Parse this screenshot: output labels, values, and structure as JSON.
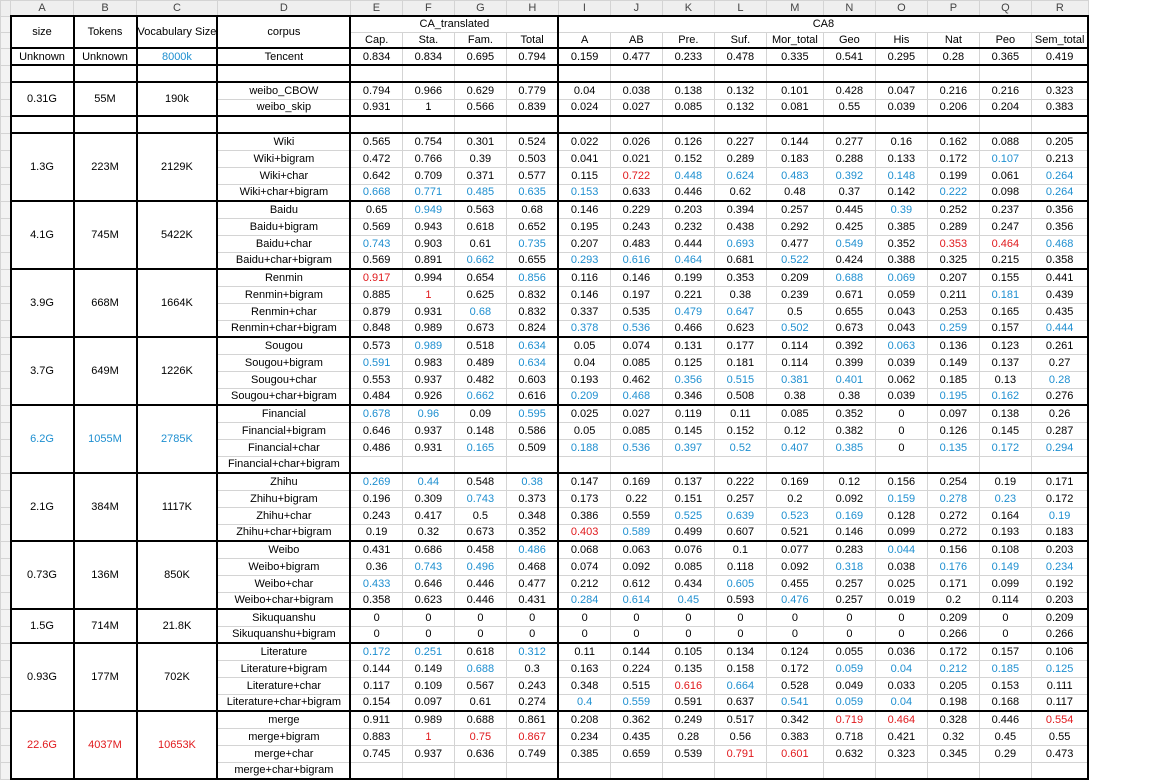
{
  "column_letters": [
    "A",
    "B",
    "C",
    "D",
    "E",
    "F",
    "G",
    "H",
    "I",
    "J",
    "K",
    "L",
    "M",
    "N",
    "O",
    "P",
    "Q",
    "R"
  ],
  "row_numbers": [
    "",
    "",
    "",
    "",
    "",
    "",
    "",
    "",
    "",
    "",
    "",
    "",
    "",
    "",
    "",
    "",
    "",
    "",
    "",
    "",
    "",
    "",
    "",
    "",
    "",
    "",
    "",
    "",
    "",
    "",
    "",
    "",
    "",
    "",
    "",
    "",
    "",
    "",
    "",
    "",
    "",
    "",
    "",
    "",
    ""
  ],
  "header": {
    "size": "size",
    "tokens": "Tokens",
    "vocab": "Vocabulary Size",
    "corpus": "corpus",
    "ca_translated": "CA_translated",
    "ca8": "CA8",
    "sub": [
      "Cap.",
      "Sta.",
      "Fam.",
      "Total",
      "A",
      "AB",
      "Pre.",
      "Suf.",
      "Mor_total",
      "Geo",
      "His",
      "Nat",
      "Peo",
      "Sem_total"
    ]
  },
  "colors": {
    "blue": "#1e8fd0",
    "red": "#e0191c",
    "grid": "#d4d4d4",
    "header_bg": "#efefef"
  },
  "rows": [
    {
      "size": "Unknown",
      "tokens": "Unknown",
      "vocab": "8000k",
      "vocab_color": "blue",
      "corpus": "Tencent",
      "v": [
        "0.834",
        "0.834",
        "0.695",
        "0.794",
        "0.159",
        "0.477",
        "0.233",
        "0.478",
        "0.335",
        "0.541",
        "0.295",
        "0.28",
        "0.365",
        "0.419"
      ],
      "c": {}
    },
    {
      "size": "",
      "tokens": "",
      "vocab": "",
      "corpus": "",
      "v": [
        "",
        "",
        "",
        "",
        "",
        "",
        "",
        "",
        "",
        "",
        "",
        "",
        "",
        ""
      ],
      "c": {}
    },
    {
      "size": "0.31G",
      "tokens": "55M",
      "vocab": "190k",
      "corpus": "weibo_CBOW",
      "v": [
        "0.794",
        "0.966",
        "0.629",
        "0.779",
        "0.04",
        "0.038",
        "0.138",
        "0.132",
        "0.101",
        "0.428",
        "0.047",
        "0.216",
        "0.216",
        "0.323"
      ],
      "c": {}
    },
    {
      "size": "",
      "tokens": "",
      "vocab": "",
      "corpus": "weibo_skip",
      "v": [
        "0.931",
        "1",
        "0.566",
        "0.839",
        "0.024",
        "0.027",
        "0.085",
        "0.132",
        "0.081",
        "0.55",
        "0.039",
        "0.206",
        "0.204",
        "0.383"
      ],
      "c": {}
    },
    {
      "size": "",
      "tokens": "",
      "vocab": "",
      "corpus": "",
      "v": [
        "",
        "",
        "",
        "",
        "",
        "",
        "",
        "",
        "",
        "",
        "",
        "",
        "",
        ""
      ],
      "c": {}
    },
    {
      "size": "1.3G",
      "tokens": "223M",
      "vocab": "2129K",
      "corpus": "Wiki",
      "v": [
        "0.565",
        "0.754",
        "0.301",
        "0.524",
        "0.022",
        "0.026",
        "0.126",
        "0.227",
        "0.144",
        "0.277",
        "0.16",
        "0.162",
        "0.088",
        "0.205"
      ],
      "c": {}
    },
    {
      "size": "",
      "tokens": "",
      "vocab": "",
      "corpus": "Wiki+bigram",
      "v": [
        "0.472",
        "0.766",
        "0.39",
        "0.503",
        "0.041",
        "0.021",
        "0.152",
        "0.289",
        "0.183",
        "0.288",
        "0.133",
        "0.172",
        "0.107",
        "0.213"
      ],
      "c": {
        "12": "blue"
      }
    },
    {
      "size": "",
      "tokens": "",
      "vocab": "",
      "corpus": "Wiki+char",
      "v": [
        "0.642",
        "0.709",
        "0.371",
        "0.577",
        "0.115",
        "0.722",
        "0.448",
        "0.624",
        "0.483",
        "0.392",
        "0.148",
        "0.199",
        "0.061",
        "0.264"
      ],
      "c": {
        "5": "red",
        "6": "blue",
        "7": "blue",
        "8": "blue",
        "9": "blue",
        "10": "blue",
        "13": "blue"
      }
    },
    {
      "size": "",
      "tokens": "",
      "vocab": "",
      "corpus": "Wiki+char+bigram",
      "v": [
        "0.668",
        "0.771",
        "0.485",
        "0.635",
        "0.153",
        "0.633",
        "0.446",
        "0.62",
        "0.48",
        "0.37",
        "0.142",
        "0.222",
        "0.098",
        "0.264"
      ],
      "c": {
        "0": "blue",
        "1": "blue",
        "2": "blue",
        "3": "blue",
        "4": "blue",
        "11": "blue",
        "13": "blue"
      }
    },
    {
      "size": "4.1G",
      "tokens": "745M",
      "vocab": "5422K",
      "corpus": "Baidu",
      "v": [
        "0.65",
        "0.949",
        "0.563",
        "0.68",
        "0.146",
        "0.229",
        "0.203",
        "0.394",
        "0.257",
        "0.445",
        "0.39",
        "0.252",
        "0.237",
        "0.356"
      ],
      "c": {
        "1": "blue",
        "10": "blue"
      }
    },
    {
      "size": "",
      "tokens": "",
      "vocab": "",
      "corpus": "Baidu+bigram",
      "v": [
        "0.569",
        "0.943",
        "0.618",
        "0.652",
        "0.195",
        "0.243",
        "0.232",
        "0.438",
        "0.292",
        "0.425",
        "0.385",
        "0.289",
        "0.247",
        "0.356"
      ],
      "c": {}
    },
    {
      "size": "",
      "tokens": "",
      "vocab": "",
      "corpus": "Baidu+char",
      "v": [
        "0.743",
        "0.903",
        "0.61",
        "0.735",
        "0.207",
        "0.483",
        "0.444",
        "0.693",
        "0.477",
        "0.549",
        "0.352",
        "0.353",
        "0.464",
        "0.468"
      ],
      "c": {
        "0": "blue",
        "3": "blue",
        "7": "blue",
        "9": "blue",
        "11": "red",
        "12": "red",
        "13": "blue"
      }
    },
    {
      "size": "",
      "tokens": "",
      "vocab": "",
      "corpus": "Baidu+char+bigram",
      "v": [
        "0.569",
        "0.891",
        "0.662",
        "0.655",
        "0.293",
        "0.616",
        "0.464",
        "0.681",
        "0.522",
        "0.424",
        "0.388",
        "0.325",
        "0.215",
        "0.358"
      ],
      "c": {
        "2": "blue",
        "4": "blue",
        "5": "blue",
        "6": "blue",
        "8": "blue"
      }
    },
    {
      "size": "3.9G",
      "tokens": "668M",
      "vocab": "1664K",
      "corpus": "Renmin",
      "v": [
        "0.917",
        "0.994",
        "0.654",
        "0.856",
        "0.116",
        "0.146",
        "0.199",
        "0.353",
        "0.209",
        "0.688",
        "0.069",
        "0.207",
        "0.155",
        "0.441"
      ],
      "c": {
        "0": "red",
        "3": "blue",
        "9": "blue",
        "10": "blue"
      }
    },
    {
      "size": "",
      "tokens": "",
      "vocab": "",
      "corpus": "Renmin+bigram",
      "v": [
        "0.885",
        "1",
        "0.625",
        "0.832",
        "0.146",
        "0.197",
        "0.221",
        "0.38",
        "0.239",
        "0.671",
        "0.059",
        "0.211",
        "0.181",
        "0.439"
      ],
      "c": {
        "1": "red",
        "12": "blue"
      }
    },
    {
      "size": "",
      "tokens": "",
      "vocab": "",
      "corpus": "Renmin+char",
      "v": [
        "0.879",
        "0.931",
        "0.68",
        "0.832",
        "0.337",
        "0.535",
        "0.479",
        "0.647",
        "0.5",
        "0.655",
        "0.043",
        "0.253",
        "0.165",
        "0.435"
      ],
      "c": {
        "2": "blue",
        "6": "blue",
        "7": "blue"
      }
    },
    {
      "size": "",
      "tokens": "",
      "vocab": "",
      "corpus": "Renmin+char+bigram",
      "v": [
        "0.848",
        "0.989",
        "0.673",
        "0.824",
        "0.378",
        "0.536",
        "0.466",
        "0.623",
        "0.502",
        "0.673",
        "0.043",
        "0.259",
        "0.157",
        "0.444"
      ],
      "c": {
        "4": "blue",
        "5": "blue",
        "8": "blue",
        "11": "blue",
        "13": "blue"
      }
    },
    {
      "size": "3.7G",
      "tokens": "649M",
      "vocab": "1226K",
      "corpus": "Sougou",
      "v": [
        "0.573",
        "0.989",
        "0.518",
        "0.634",
        "0.05",
        "0.074",
        "0.131",
        "0.177",
        "0.114",
        "0.392",
        "0.063",
        "0.136",
        "0.123",
        "0.261"
      ],
      "c": {
        "1": "blue",
        "3": "blue",
        "10": "blue"
      }
    },
    {
      "size": "",
      "tokens": "",
      "vocab": "",
      "corpus": "Sougou+bigram",
      "v": [
        "0.591",
        "0.983",
        "0.489",
        "0.634",
        "0.04",
        "0.085",
        "0.125",
        "0.181",
        "0.114",
        "0.399",
        "0.039",
        "0.149",
        "0.137",
        "0.27"
      ],
      "c": {
        "0": "blue",
        "3": "blue"
      }
    },
    {
      "size": "",
      "tokens": "",
      "vocab": "",
      "corpus": "Sougou+char",
      "v": [
        "0.553",
        "0.937",
        "0.482",
        "0.603",
        "0.193",
        "0.462",
        "0.356",
        "0.515",
        "0.381",
        "0.401",
        "0.062",
        "0.185",
        "0.13",
        "0.28"
      ],
      "c": {
        "6": "blue",
        "7": "blue",
        "8": "blue",
        "9": "blue",
        "13": "blue"
      }
    },
    {
      "size": "",
      "tokens": "",
      "vocab": "",
      "corpus": "Sougou+char+bigram",
      "v": [
        "0.484",
        "0.926",
        "0.662",
        "0.616",
        "0.209",
        "0.468",
        "0.346",
        "0.508",
        "0.38",
        "0.38",
        "0.039",
        "0.195",
        "0.162",
        "0.276"
      ],
      "c": {
        "2": "blue",
        "4": "blue",
        "5": "blue",
        "11": "blue",
        "12": "blue"
      }
    },
    {
      "size": "6.2G",
      "size_color": "blue",
      "tokens": "1055M",
      "tokens_color": "blue",
      "vocab": "2785K",
      "vocab_color": "blue",
      "corpus": "Financial",
      "v": [
        "0.678",
        "0.96",
        "0.09",
        "0.595",
        "0.025",
        "0.027",
        "0.119",
        "0.11",
        "0.085",
        "0.352",
        "0",
        "0.097",
        "0.138",
        "0.26"
      ],
      "c": {
        "0": "blue",
        "1": "blue",
        "3": "blue"
      }
    },
    {
      "size": "",
      "tokens": "",
      "vocab": "",
      "corpus": "Financial+bigram",
      "v": [
        "0.646",
        "0.937",
        "0.148",
        "0.586",
        "0.05",
        "0.085",
        "0.145",
        "0.152",
        "0.12",
        "0.382",
        "0",
        "0.126",
        "0.145",
        "0.287"
      ],
      "c": {}
    },
    {
      "size": "",
      "tokens": "",
      "vocab": "",
      "corpus": "Financial+char",
      "v": [
        "0.486",
        "0.931",
        "0.165",
        "0.509",
        "0.188",
        "0.536",
        "0.397",
        "0.52",
        "0.407",
        "0.385",
        "0",
        "0.135",
        "0.172",
        "0.294"
      ],
      "c": {
        "2": "blue",
        "4": "blue",
        "5": "blue",
        "6": "blue",
        "7": "blue",
        "8": "blue",
        "9": "blue",
        "11": "blue",
        "12": "blue",
        "13": "blue"
      }
    },
    {
      "size": "",
      "tokens": "",
      "vocab": "",
      "corpus": "Financial+char+bigram",
      "v": [
        "",
        "",
        "",
        "",
        "",
        "",
        "",
        "",
        "",
        "",
        "",
        "",
        "",
        ""
      ],
      "c": {}
    },
    {
      "size": "2.1G",
      "tokens": "384M",
      "vocab": "1117K",
      "corpus": "Zhihu",
      "v": [
        "0.269",
        "0.44",
        "0.548",
        "0.38",
        "0.147",
        "0.169",
        "0.137",
        "0.222",
        "0.169",
        "0.12",
        "0.156",
        "0.254",
        "0.19",
        "0.171"
      ],
      "c": {
        "0": "blue",
        "1": "blue",
        "3": "blue"
      }
    },
    {
      "size": "",
      "tokens": "",
      "vocab": "",
      "corpus": "Zhihu+bigram",
      "v": [
        "0.196",
        "0.309",
        "0.743",
        "0.373",
        "0.173",
        "0.22",
        "0.151",
        "0.257",
        "0.2",
        "0.092",
        "0.159",
        "0.278",
        "0.23",
        "0.172"
      ],
      "c": {
        "2": "blue",
        "10": "blue",
        "11": "blue",
        "12": "blue"
      }
    },
    {
      "size": "",
      "tokens": "",
      "vocab": "",
      "corpus": "Zhihu+char",
      "v": [
        "0.243",
        "0.417",
        "0.5",
        "0.348",
        "0.386",
        "0.559",
        "0.525",
        "0.639",
        "0.523",
        "0.169",
        "0.128",
        "0.272",
        "0.164",
        "0.19"
      ],
      "c": {
        "6": "blue",
        "7": "blue",
        "8": "blue",
        "9": "blue",
        "13": "blue"
      }
    },
    {
      "size": "",
      "tokens": "",
      "vocab": "",
      "corpus": "Zhihu+char+bigram",
      "v": [
        "0.19",
        "0.32",
        "0.673",
        "0.352",
        "0.403",
        "0.589",
        "0.499",
        "0.607",
        "0.521",
        "0.146",
        "0.099",
        "0.272",
        "0.193",
        "0.183"
      ],
      "c": {
        "4": "red",
        "5": "blue"
      }
    },
    {
      "size": "0.73G",
      "tokens": "136M",
      "vocab": "850K",
      "corpus": "Weibo",
      "v": [
        "0.431",
        "0.686",
        "0.458",
        "0.486",
        "0.068",
        "0.063",
        "0.076",
        "0.1",
        "0.077",
        "0.283",
        "0.044",
        "0.156",
        "0.108",
        "0.203"
      ],
      "c": {
        "3": "blue",
        "10": "blue"
      }
    },
    {
      "size": "",
      "tokens": "",
      "vocab": "",
      "corpus": "Weibo+bigram",
      "v": [
        "0.36",
        "0.743",
        "0.496",
        "0.468",
        "0.074",
        "0.092",
        "0.085",
        "0.118",
        "0.092",
        "0.318",
        "0.038",
        "0.176",
        "0.149",
        "0.234"
      ],
      "c": {
        "1": "blue",
        "2": "blue",
        "9": "blue",
        "11": "blue",
        "12": "blue",
        "13": "blue"
      }
    },
    {
      "size": "",
      "tokens": "",
      "vocab": "",
      "corpus": "Weibo+char",
      "v": [
        "0.433",
        "0.646",
        "0.446",
        "0.477",
        "0.212",
        "0.612",
        "0.434",
        "0.605",
        "0.455",
        "0.257",
        "0.025",
        "0.171",
        "0.099",
        "0.192"
      ],
      "c": {
        "0": "blue",
        "7": "blue"
      }
    },
    {
      "size": "",
      "tokens": "",
      "vocab": "",
      "corpus": "Weibo+char+bigram",
      "v": [
        "0.358",
        "0.623",
        "0.446",
        "0.431",
        "0.284",
        "0.614",
        "0.45",
        "0.593",
        "0.476",
        "0.257",
        "0.019",
        "0.2",
        "0.114",
        "0.203"
      ],
      "c": {
        "4": "blue",
        "5": "blue",
        "6": "blue",
        "8": "blue"
      }
    },
    {
      "size": "1.5G",
      "tokens": "714M",
      "vocab": "21.8K",
      "corpus": "Sikuquanshu",
      "v": [
        "0",
        "0",
        "0",
        "0",
        "0",
        "0",
        "0",
        "0",
        "0",
        "0",
        "0",
        "0.209",
        "0",
        "0.209"
      ],
      "c": {}
    },
    {
      "size": "",
      "tokens": "",
      "vocab": "",
      "corpus": "Sikuquanshu+bigram",
      "v": [
        "0",
        "0",
        "0",
        "0",
        "0",
        "0",
        "0",
        "0",
        "0",
        "0",
        "0",
        "0.266",
        "0",
        "0.266"
      ],
      "c": {}
    },
    {
      "size": "0.93G",
      "tokens": "177M",
      "vocab": "702K",
      "corpus": "Literature",
      "v": [
        "0.172",
        "0.251",
        "0.618",
        "0.312",
        "0.11",
        "0.144",
        "0.105",
        "0.134",
        "0.124",
        "0.055",
        "0.036",
        "0.172",
        "0.157",
        "0.106"
      ],
      "c": {
        "0": "blue",
        "1": "blue",
        "3": "blue"
      }
    },
    {
      "size": "",
      "tokens": "",
      "vocab": "",
      "corpus": "Literature+bigram",
      "v": [
        "0.144",
        "0.149",
        "0.688",
        "0.3",
        "0.163",
        "0.224",
        "0.135",
        "0.158",
        "0.172",
        "0.059",
        "0.04",
        "0.212",
        "0.185",
        "0.125"
      ],
      "c": {
        "2": "blue",
        "9": "blue",
        "10": "blue",
        "11": "blue",
        "12": "blue",
        "13": "blue"
      }
    },
    {
      "size": "",
      "tokens": "",
      "vocab": "",
      "corpus": "Literature+char",
      "v": [
        "0.117",
        "0.109",
        "0.567",
        "0.243",
        "0.348",
        "0.515",
        "0.616",
        "0.664",
        "0.528",
        "0.049",
        "0.033",
        "0.205",
        "0.153",
        "0.111"
      ],
      "c": {
        "6": "red",
        "7": "blue"
      }
    },
    {
      "size": "",
      "tokens": "",
      "vocab": "",
      "corpus": "Literature+char+bigram",
      "v": [
        "0.154",
        "0.097",
        "0.61",
        "0.274",
        "0.4",
        "0.559",
        "0.591",
        "0.637",
        "0.541",
        "0.059",
        "0.04",
        "0.198",
        "0.168",
        "0.117"
      ],
      "c": {
        "4": "blue",
        "5": "blue",
        "8": "blue",
        "9": "blue",
        "10": "blue"
      }
    },
    {
      "size": "22.6G",
      "size_color": "red",
      "tokens": "4037M",
      "tokens_color": "red",
      "vocab": "10653K",
      "vocab_color": "red",
      "corpus": "merge",
      "v": [
        "0.911",
        "0.989",
        "0.688",
        "0.861",
        "0.208",
        "0.362",
        "0.249",
        "0.517",
        "0.342",
        "0.719",
        "0.464",
        "0.328",
        "0.446",
        "0.554"
      ],
      "c": {
        "9": "red",
        "10": "red",
        "13": "red"
      }
    },
    {
      "size": "",
      "tokens": "",
      "vocab": "",
      "corpus": "merge+bigram",
      "v": [
        "0.883",
        "1",
        "0.75",
        "0.867",
        "0.234",
        "0.435",
        "0.28",
        "0.56",
        "0.383",
        "0.718",
        "0.421",
        "0.32",
        "0.45",
        "0.55"
      ],
      "c": {
        "1": "red",
        "2": "red",
        "3": "red"
      }
    },
    {
      "size": "",
      "tokens": "",
      "vocab": "",
      "corpus": "merge+char",
      "v": [
        "0.745",
        "0.937",
        "0.636",
        "0.749",
        "0.385",
        "0.659",
        "0.539",
        "0.791",
        "0.601",
        "0.632",
        "0.323",
        "0.345",
        "0.29",
        "0.473"
      ],
      "c": {
        "7": "red",
        "8": "red"
      }
    },
    {
      "size": "",
      "tokens": "",
      "vocab": "",
      "corpus": "merge+char+bigram",
      "v": [
        "",
        "",
        "",
        "",
        "",
        "",
        "",
        "",
        "",
        "",
        "",
        "",
        "",
        ""
      ],
      "c": {}
    }
  ]
}
